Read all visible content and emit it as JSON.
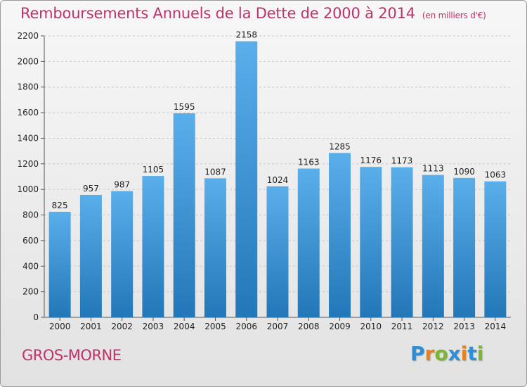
{
  "title": "Remboursements Annuels de la Dette de 2000 à 2014",
  "unit_note": "(en milliers d'€)",
  "commune": "GROS-MORNE",
  "brand": {
    "letters": [
      "P",
      "r",
      "o",
      "x",
      "i",
      "t",
      "i"
    ],
    "colors": [
      "#2e8fd6",
      "#e8801c",
      "#7cb82f",
      "#2e8fd6",
      "#e8801c",
      "#2e8fd6",
      "#7cb82f"
    ]
  },
  "colors": {
    "title": "#c0306a",
    "bar_top": "#5aaeea",
    "bar_bottom": "#2277b8"
  },
  "chart_data": {
    "type": "bar",
    "title": "Remboursements Annuels de la Dette de 2000 à 2014",
    "categories": [
      "2000",
      "2001",
      "2002",
      "2003",
      "2004",
      "2005",
      "2006",
      "2007",
      "2008",
      "2009",
      "2010",
      "2011",
      "2012",
      "2013",
      "2014"
    ],
    "values": [
      825,
      957,
      987,
      1105,
      1595,
      1087,
      2158,
      1024,
      1163,
      1285,
      1176,
      1173,
      1113,
      1090,
      1063
    ],
    "ylim": [
      0,
      2200
    ],
    "yticks": [
      0,
      200,
      400,
      600,
      800,
      1000,
      1200,
      1400,
      1600,
      1800,
      2000,
      2200
    ],
    "grid": true,
    "data_labels": true
  }
}
